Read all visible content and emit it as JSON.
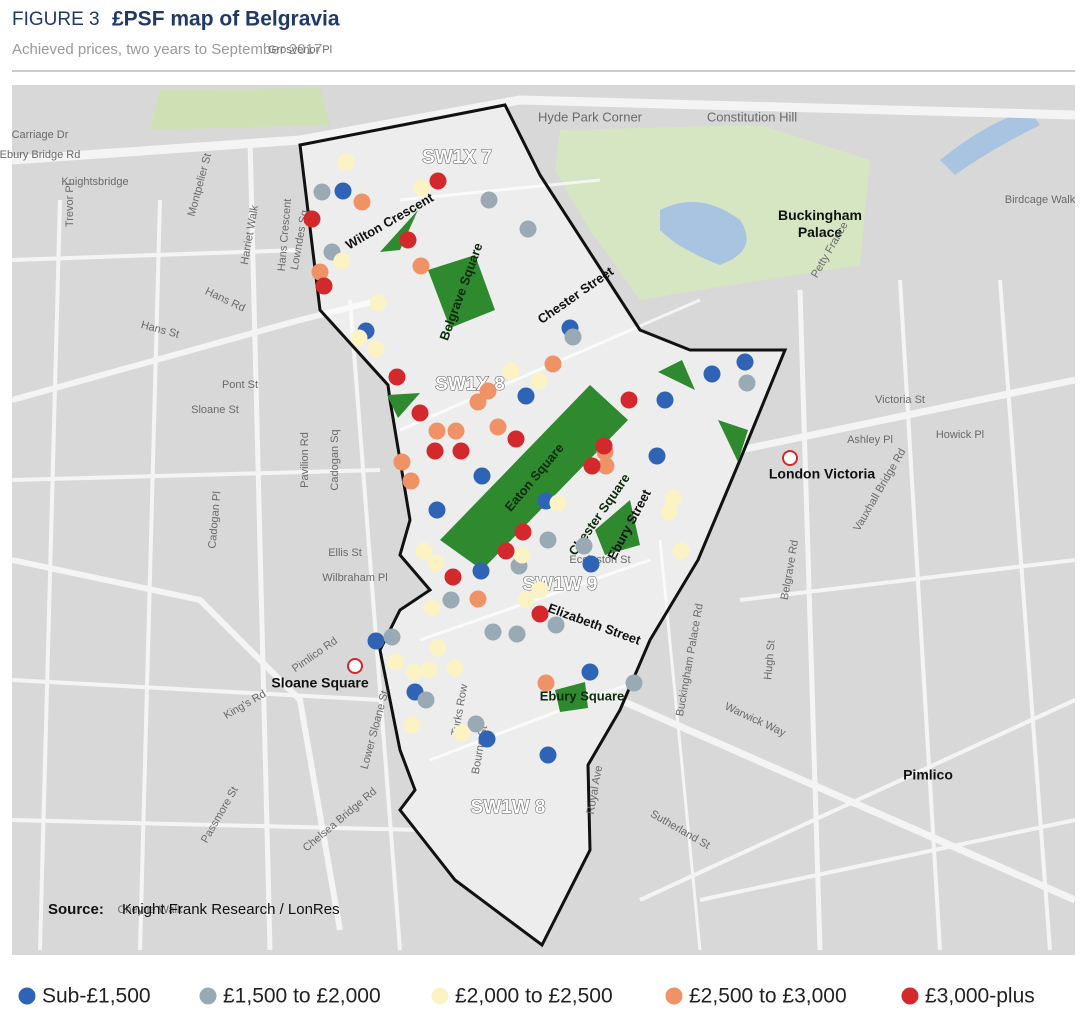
{
  "header": {
    "figure": "FIGURE 3",
    "title": "£PSF map of Belgravia",
    "subtitle": "Achieved prices, two years to September 2017"
  },
  "map": {
    "districts": [
      "SW1X 7",
      "SW1X 8",
      "SW1W 9",
      "SW1W 8"
    ],
    "places": [
      "Buckingham Palace",
      "London Victoria",
      "Sloane Square",
      "Pimlico",
      "Hyde Park Corner",
      "Constitution Hill"
    ],
    "streets": [
      "Wilton Crescent",
      "Chester Street",
      "Elizabeth Street",
      "Ebury Street"
    ],
    "parks": [
      "Belgrave Square",
      "Eaton Square",
      "Chester Square",
      "Ebury Square"
    ],
    "minor_streets": [
      "Carriage Dr",
      "Knightsbridge",
      "Trevor Pl",
      "Montpelier St",
      "Lowndes Sq",
      "Harriet Walk",
      "Hans Crescent",
      "Hans Rd",
      "Hans St",
      "Pont St",
      "Sloane St",
      "Pavilion Rd",
      "Cadogan Sq",
      "Cadogan Pl",
      "Ellis St",
      "Wilbraham Pl",
      "Lower Sloane St",
      "Pimlico Rd",
      "Warwick Way",
      "Sutherland St",
      "Belgrave Rd",
      "Victoria St",
      "Vauxhall Bridge Rd",
      "Buckingham Palace Rd",
      "Grosvenor Pl",
      "Petty France",
      "Birdcage Walk",
      "Hugh St",
      "Eccleston St",
      "Ashley Pl",
      "Howick Pl",
      "King's Rd",
      "Cheyne Walk",
      "Chelsea Bridge Rd",
      "Turks Row",
      "Bourne St",
      "Passmore St",
      "Royal Ave",
      "Ebury Bridge Rd"
    ]
  },
  "source": {
    "label": "Source:",
    "text": "Knight Frank Research / LonRes"
  },
  "legend": [
    {
      "label": "Sub-£1,500",
      "color": "#2f63b5"
    },
    {
      "label": "£1,500 to £2,000",
      "color": "#9aaab5"
    },
    {
      "label": "£2,000 to £2,500",
      "color": "#fbf3c4"
    },
    {
      "label": "£2,500 to £3,000",
      "color": "#ef9266"
    },
    {
      "label": "£3,000-plus",
      "color": "#d3292c"
    }
  ]
}
